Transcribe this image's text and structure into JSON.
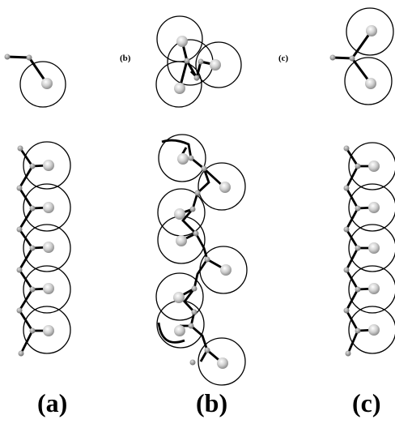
{
  "labels": {
    "top_b": "(b)",
    "top_c": "(c)",
    "bottom_a": "(a)",
    "bottom_b": "(b)",
    "bottom_c": "(c)"
  },
  "colors": {
    "ring_stroke": "#000000",
    "bond": "#000000",
    "bead_fill": "#bdbdbd",
    "atom_fill": "#9a9a9a",
    "background": "#ffffff"
  }
}
